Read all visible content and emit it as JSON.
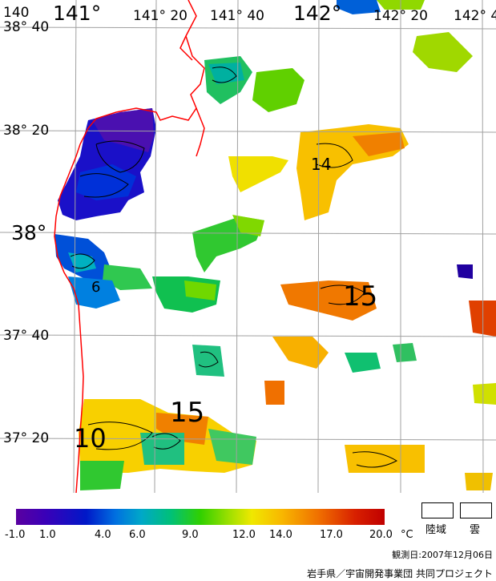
{
  "map": {
    "lon_labels": [
      "140",
      "141°",
      "141° 20",
      "141° 40",
      "142°",
      "142° 20",
      "142° 4"
    ],
    "lat_labels": [
      "38° 40",
      "38° 20",
      "38°",
      "37° 40",
      "37° 20"
    ],
    "contour_labels": [
      "14",
      "6",
      "15",
      "15",
      "10"
    ]
  },
  "legend": {
    "ticks": [
      "-1.0",
      "1.0",
      "4.0",
      "6.0",
      "9.0",
      "12.0",
      "14.0",
      "17.0",
      "20.0"
    ],
    "unit": "°C",
    "land_label": "陸域",
    "cloud_label": "雲"
  },
  "footer": {
    "date": "観測日:2007年12月06日",
    "credit": "岩手県／宇宙開発事業団 共同プロジェクト"
  },
  "colors": {
    "coast": "#ff0000",
    "grid": "#a0a0a0"
  }
}
